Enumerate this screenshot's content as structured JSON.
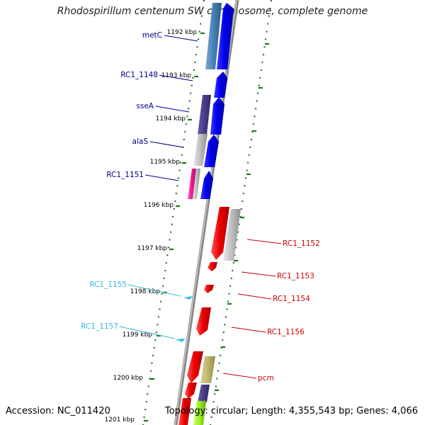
{
  "title": "Rhodospirillum centenum SW chromosome, complete genome",
  "footer": {
    "accession": "Accession: NC_011420",
    "topology": "Topology: circular; Length: 4,355,543 bp; Genes: 4,066"
  },
  "ruler": [
    {
      "label": "1192 kbp"
    },
    {
      "label": "1193 kbp"
    },
    {
      "label": "1194 kbp"
    },
    {
      "label": "1195 kbp"
    },
    {
      "label": "1196 kbp"
    },
    {
      "label": "1197 kbp"
    },
    {
      "label": "1198 kbp"
    },
    {
      "label": "1199 kbp"
    },
    {
      "label": "1200 kbp"
    },
    {
      "label": "1201 kbp"
    }
  ],
  "labels_left": [
    {
      "text": "metC",
      "color": "#00008b"
    },
    {
      "text": "RC1_1148",
      "color": "#00008b"
    },
    {
      "text": "sseA",
      "color": "#00008b"
    },
    {
      "text": "alaS",
      "color": "#00008b"
    },
    {
      "text": "RC1_1151",
      "color": "#00008b"
    },
    {
      "text": "RC1_1155",
      "color": "#33bbdd"
    },
    {
      "text": "RC1_1157",
      "color": "#33bbdd"
    }
  ],
  "labels_right": [
    {
      "text": "RC1_1152",
      "color": "#cc0000"
    },
    {
      "text": "RC1_1153",
      "color": "#cc0000"
    },
    {
      "text": "RC1_1154",
      "color": "#cc0000"
    },
    {
      "text": "RC1_1156",
      "color": "#cc0000"
    },
    {
      "text": "pcm",
      "color": "#cc0000"
    }
  ],
  "colors": {
    "forward_strand": "#0000ee",
    "reverse_strand": "#ee0000",
    "backbone": "#888888",
    "ruler_ticks": "#1a7a1a",
    "trna": "#33bbdd"
  }
}
